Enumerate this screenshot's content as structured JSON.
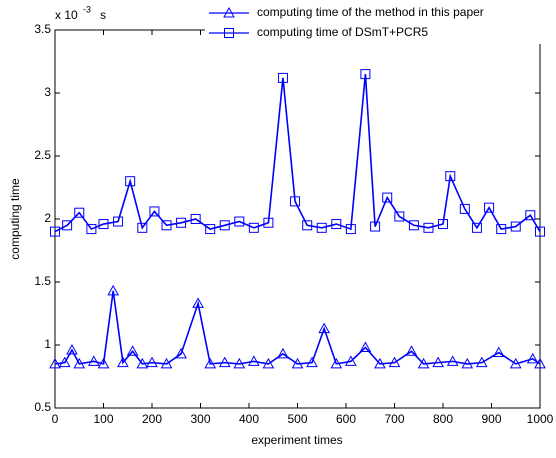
{
  "chart_data": {
    "type": "line",
    "y_multiplier": "x 10",
    "y_exponent": "-3",
    "y_unit": "s",
    "xlabel": "experiment times",
    "ylabel": "computing time",
    "xlim": [
      0,
      1000
    ],
    "xticks": [
      0,
      100,
      200,
      300,
      400,
      500,
      600,
      700,
      800,
      900,
      1000
    ],
    "ylim": [
      0.5,
      3.5
    ],
    "yticks": [
      0.5,
      1,
      1.5,
      2,
      2.5,
      3,
      3.5
    ],
    "legend": "top-right",
    "series": [
      {
        "name": "computing time of the method in this paper",
        "color": "#0000ff",
        "marker": "triangle",
        "x": [
          0,
          20,
          35,
          50,
          80,
          100,
          120,
          140,
          160,
          180,
          200,
          230,
          260,
          295,
          320,
          350,
          380,
          410,
          440,
          470,
          500,
          530,
          555,
          580,
          610,
          640,
          670,
          700,
          735,
          760,
          790,
          820,
          850,
          880,
          915,
          950,
          985,
          1000
        ],
        "values": [
          0.85,
          0.86,
          0.96,
          0.85,
          0.87,
          0.85,
          1.43,
          0.86,
          0.95,
          0.85,
          0.86,
          0.85,
          0.93,
          1.33,
          0.85,
          0.86,
          0.85,
          0.87,
          0.85,
          0.93,
          0.85,
          0.86,
          1.13,
          0.85,
          0.87,
          0.98,
          0.85,
          0.86,
          0.95,
          0.85,
          0.86,
          0.87,
          0.85,
          0.86,
          0.94,
          0.85,
          0.89,
          0.85
        ]
      },
      {
        "name": "computing time of DSmT+PCR5",
        "color": "#0000ff",
        "marker": "square",
        "x": [
          0,
          25,
          50,
          75,
          100,
          130,
          155,
          180,
          205,
          230,
          260,
          290,
          320,
          350,
          380,
          410,
          440,
          470,
          495,
          520,
          550,
          580,
          610,
          640,
          660,
          685,
          710,
          740,
          770,
          800,
          815,
          845,
          870,
          895,
          920,
          950,
          980,
          1000
        ],
        "values": [
          1.9,
          1.95,
          2.05,
          1.92,
          1.96,
          1.98,
          2.3,
          1.93,
          2.06,
          1.95,
          1.97,
          2.0,
          1.92,
          1.95,
          1.98,
          1.93,
          1.97,
          3.12,
          2.14,
          1.95,
          1.93,
          1.96,
          1.92,
          3.15,
          1.94,
          2.17,
          2.02,
          1.95,
          1.93,
          1.96,
          2.34,
          2.08,
          1.93,
          2.09,
          1.92,
          1.94,
          2.03,
          1.9
        ]
      }
    ]
  }
}
